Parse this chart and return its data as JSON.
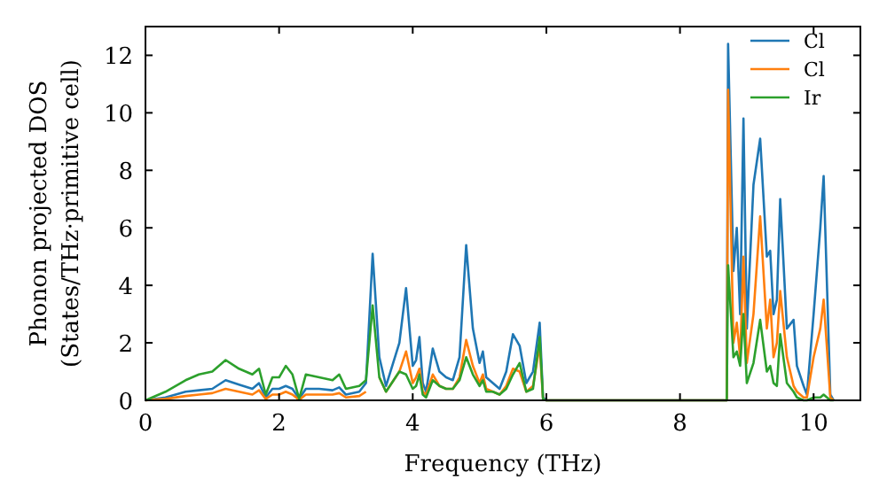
{
  "chart_data": {
    "type": "line",
    "xlabel": "Frequency (THz)",
    "ylabel": "Phonon projected DOS\n(States/THz·primitive cell)",
    "xlim": [
      0,
      10.7
    ],
    "ylim": [
      0,
      13
    ],
    "xticks": [
      0,
      2,
      4,
      6,
      8,
      10
    ],
    "yticks": [
      0,
      2,
      4,
      6,
      8,
      10,
      12
    ],
    "legend": "top right",
    "grid": false,
    "series": [
      {
        "name": "Cl",
        "color": "#1f77b4",
        "x": [
          0,
          0.3,
          0.6,
          0.8,
          1.0,
          1.2,
          1.4,
          1.6,
          1.7,
          1.8,
          1.9,
          2.0,
          2.1,
          2.2,
          2.3,
          2.4,
          2.6,
          2.8,
          2.9,
          3.0,
          3.2,
          3.3,
          3.4,
          3.5,
          3.6,
          3.8,
          3.9,
          4.0,
          4.05,
          4.1,
          4.15,
          4.2,
          4.3,
          4.4,
          4.5,
          4.6,
          4.7,
          4.8,
          4.9,
          5.0,
          5.05,
          5.1,
          5.2,
          5.3,
          5.4,
          5.5,
          5.6,
          5.7,
          5.8,
          5.9,
          5.95,
          6.0,
          8.7,
          8.72,
          8.8,
          8.85,
          8.9,
          8.95,
          9.0,
          9.1,
          9.2,
          9.3,
          9.35,
          9.4,
          9.45,
          9.5,
          9.6,
          9.7,
          9.75,
          9.85,
          9.9,
          10.0,
          10.1,
          10.15,
          10.25,
          10.3
        ],
        "values": [
          0,
          0.1,
          0.3,
          0.35,
          0.4,
          0.7,
          0.55,
          0.4,
          0.6,
          0.1,
          0.4,
          0.4,
          0.5,
          0.4,
          0.05,
          0.4,
          0.4,
          0.35,
          0.45,
          0.2,
          0.3,
          0.6,
          5.1,
          1.5,
          0.5,
          2.0,
          3.9,
          1.2,
          1.4,
          2.2,
          0.6,
          0.3,
          1.8,
          1.0,
          0.8,
          0.7,
          1.5,
          5.4,
          2.5,
          1.3,
          1.7,
          0.8,
          0.6,
          0.4,
          1.0,
          2.3,
          1.9,
          0.6,
          1.0,
          2.7,
          0.1,
          0,
          0,
          12.4,
          4.5,
          6.0,
          3.0,
          9.8,
          2.5,
          7.5,
          9.1,
          5.0,
          5.2,
          3.0,
          3.5,
          7.0,
          2.5,
          2.8,
          1.2,
          0.5,
          0.2,
          3.0,
          6.0,
          7.8,
          0.2,
          0
        ]
      },
      {
        "name": "Cl",
        "color": "#ff7f0e",
        "x": [
          0,
          0.3,
          0.6,
          0.8,
          1.0,
          1.2,
          1.4,
          1.6,
          1.7,
          1.8,
          1.9,
          2.0,
          2.1,
          2.2,
          2.3,
          2.4,
          2.6,
          2.8,
          2.9,
          3.0,
          3.2,
          3.3,
          3.4,
          3.5,
          3.6,
          3.8,
          3.9,
          4.0,
          4.05,
          4.1,
          4.15,
          4.2,
          4.3,
          4.4,
          4.5,
          4.6,
          4.7,
          4.8,
          4.9,
          5.0,
          5.05,
          5.1,
          5.2,
          5.3,
          5.4,
          5.5,
          5.6,
          5.7,
          5.8,
          5.9,
          5.95,
          6.0,
          8.7,
          8.72,
          8.8,
          8.85,
          8.9,
          8.95,
          9.0,
          9.1,
          9.2,
          9.3,
          9.35,
          9.4,
          9.45,
          9.5,
          9.6,
          9.7,
          9.75,
          9.85,
          9.9,
          10.0,
          10.1,
          10.15,
          10.25,
          10.3
        ],
        "values": [
          0,
          0.05,
          0.15,
          0.2,
          0.25,
          0.4,
          0.3,
          0.2,
          0.35,
          0.05,
          0.2,
          0.2,
          0.3,
          0.2,
          0.02,
          0.2,
          0.2,
          0.2,
          0.25,
          0.1,
          0.15,
          0.3,
          null,
          0.8,
          0.3,
          1.0,
          1.7,
          0.6,
          0.8,
          1.1,
          0.3,
          0.2,
          0.9,
          0.5,
          0.4,
          0.4,
          0.8,
          2.1,
          1.2,
          0.6,
          0.9,
          0.4,
          0.3,
          0.2,
          0.5,
          1.1,
          1.0,
          0.3,
          0.5,
          1.9,
          0.05,
          0,
          0,
          10.8,
          2.0,
          2.7,
          1.5,
          5.0,
          1.3,
          3.0,
          6.4,
          2.5,
          3.5,
          1.5,
          2.0,
          3.8,
          1.5,
          0.5,
          0.3,
          0.1,
          0.1,
          1.5,
          2.5,
          3.5,
          0.1,
          0
        ]
      },
      {
        "name": "Ir",
        "color": "#2ca02c",
        "x": [
          0,
          0.3,
          0.6,
          0.8,
          1.0,
          1.2,
          1.4,
          1.6,
          1.7,
          1.8,
          1.9,
          2.0,
          2.1,
          2.2,
          2.3,
          2.4,
          2.6,
          2.8,
          2.9,
          3.0,
          3.2,
          3.3,
          3.4,
          3.5,
          3.6,
          3.8,
          3.9,
          4.0,
          4.05,
          4.1,
          4.15,
          4.2,
          4.3,
          4.4,
          4.5,
          4.6,
          4.7,
          4.8,
          4.9,
          5.0,
          5.05,
          5.1,
          5.2,
          5.3,
          5.4,
          5.5,
          5.6,
          5.7,
          5.8,
          5.9,
          5.95,
          6.0,
          8.7,
          8.72,
          8.8,
          8.85,
          8.9,
          8.95,
          9.0,
          9.1,
          9.2,
          9.3,
          9.35,
          9.4,
          9.45,
          9.5,
          9.6,
          9.7,
          9.75,
          9.85,
          9.9,
          10.0,
          10.1,
          10.15,
          10.25,
          10.3
        ],
        "values": [
          0,
          0.3,
          0.7,
          0.9,
          1.0,
          1.4,
          1.1,
          0.9,
          1.1,
          0.2,
          0.8,
          0.8,
          1.2,
          0.9,
          0.05,
          0.9,
          0.8,
          0.7,
          0.9,
          0.4,
          0.5,
          0.7,
          3.3,
          0.8,
          0.3,
          1.0,
          0.9,
          0.4,
          0.5,
          0.9,
          0.2,
          0.1,
          0.7,
          0.5,
          0.4,
          0.4,
          0.7,
          1.5,
          0.9,
          0.5,
          0.7,
          0.3,
          0.3,
          0.2,
          0.4,
          0.9,
          1.3,
          0.3,
          0.4,
          2.2,
          0.05,
          0,
          0,
          4.7,
          1.5,
          1.7,
          1.2,
          3.0,
          0.6,
          1.3,
          2.8,
          1.0,
          1.2,
          0.6,
          0.5,
          2.3,
          0.6,
          0.3,
          0.1,
          0,
          0,
          0.1,
          0.1,
          0.2,
          0,
          0
        ]
      }
    ]
  }
}
